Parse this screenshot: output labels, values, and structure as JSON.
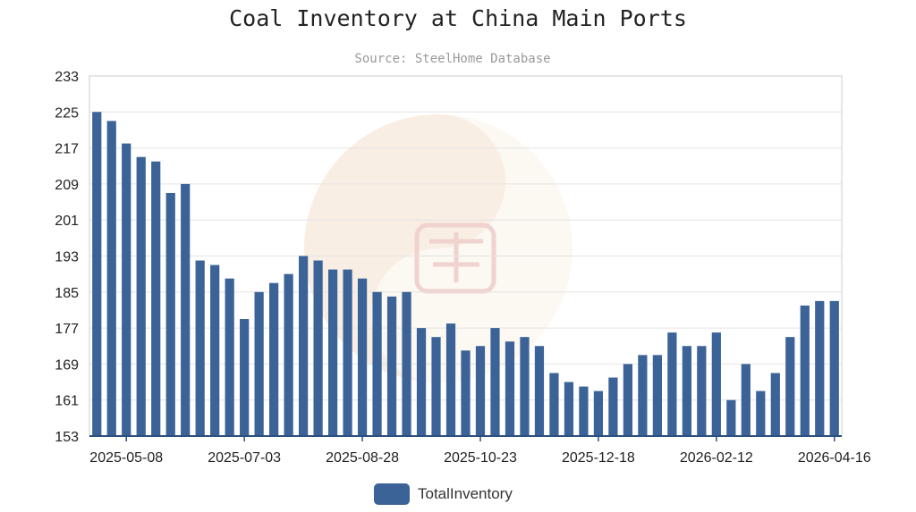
{
  "colors": {
    "bar": "#3b6397",
    "grid": "#e4e4e4",
    "axis": "#2b4f7e"
  },
  "chart_data": {
    "type": "bar",
    "title": "Coal Inventory at China Main Ports",
    "subtitle": "Source: SteelHome Database",
    "xlabel": "",
    "ylabel": "",
    "ylim": [
      153,
      233
    ],
    "yticks": [
      153,
      161,
      169,
      177,
      185,
      193,
      201,
      209,
      217,
      225,
      233
    ],
    "x_tick_labels": [
      "2025-05-08",
      "2025-07-03",
      "2025-08-28",
      "2025-10-23",
      "2025-12-18",
      "2026-02-12",
      "2026-04-16"
    ],
    "grid": true,
    "legend_position": "bottom-center",
    "series": [
      {
        "name": "TotalInventory",
        "values": [
          225,
          223,
          218,
          215,
          214,
          207,
          209,
          192,
          191,
          188,
          179,
          185,
          187,
          189,
          193,
          192,
          190,
          190,
          188,
          185,
          184,
          185,
          177,
          175,
          178,
          172,
          173,
          177,
          174,
          175,
          173,
          167,
          165,
          164,
          163,
          166,
          169,
          171,
          171,
          176,
          173,
          173,
          176,
          161,
          169,
          163,
          167,
          175,
          182,
          183,
          183
        ]
      }
    ]
  }
}
